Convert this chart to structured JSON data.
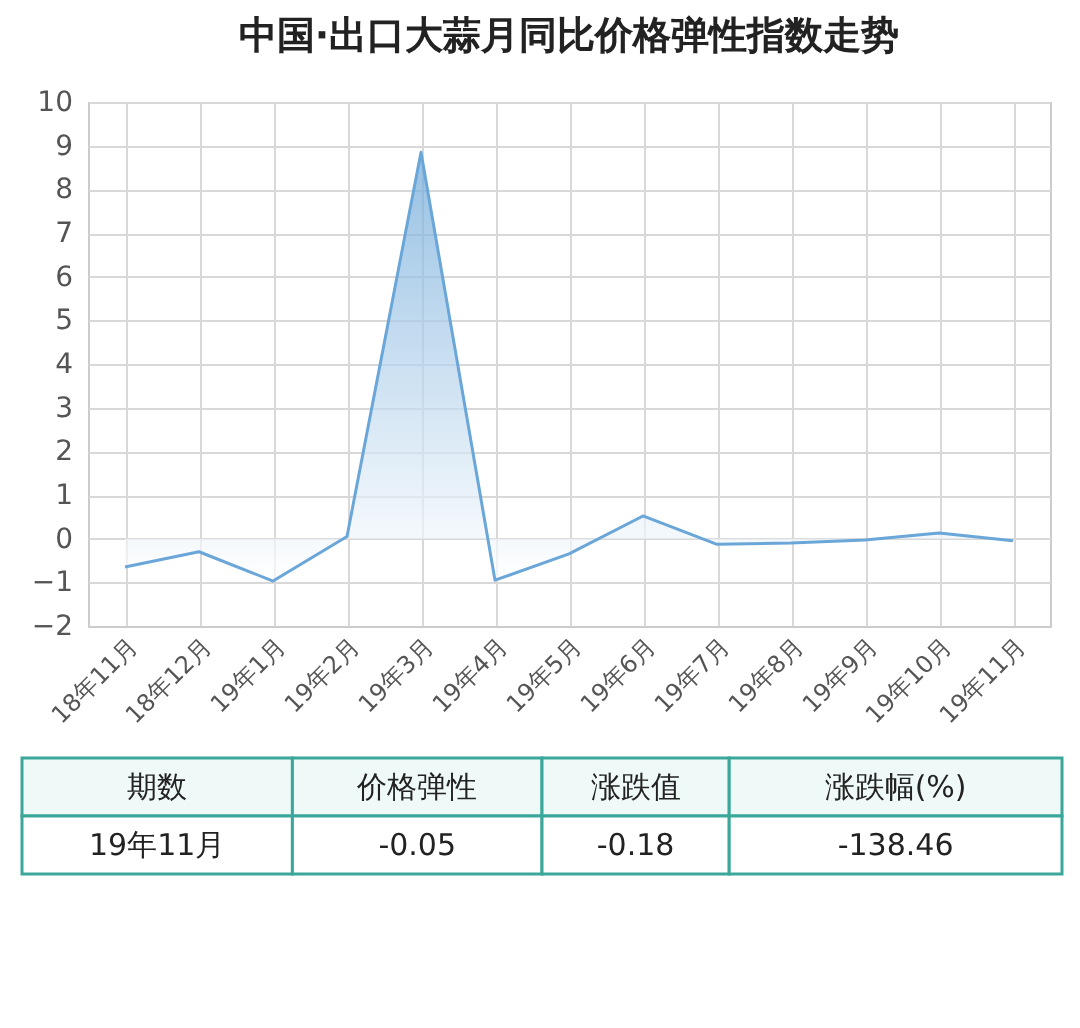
{
  "chart_data": [
    {
      "type": "area",
      "title": "中国·出口大蒜月同比价格弹性指数走势",
      "categories": [
        "18年11月",
        "18年12月",
        "19年1月",
        "19年2月",
        "19年3月",
        "19年4月",
        "19年5月",
        "19年6月",
        "19年7月",
        "19年8月",
        "19年9月",
        "19年10月",
        "19年11月"
      ],
      "series": [
        {
          "color": "#6aa6d8",
          "values": [
            -0.65,
            -0.3,
            -0.97,
            0.05,
            8.85,
            -0.95,
            -0.35,
            0.52,
            -0.13,
            -0.1,
            -0.03,
            0.13,
            -0.05
          ]
        }
      ],
      "ylim": [
        -2,
        10
      ],
      "yticks": [
        -2,
        -1,
        0,
        1,
        2,
        3,
        4,
        5,
        6,
        7,
        8,
        9,
        10
      ],
      "grid": true
    },
    {
      "type": "other",
      "categories": [
        "期数",
        "价格弹性",
        "涨跌值",
        "涨跌幅(%)"
      ],
      "value_labels": [
        "19年11月",
        "-0.05",
        "-0.18",
        "-138.46"
      ]
    }
  ]
}
